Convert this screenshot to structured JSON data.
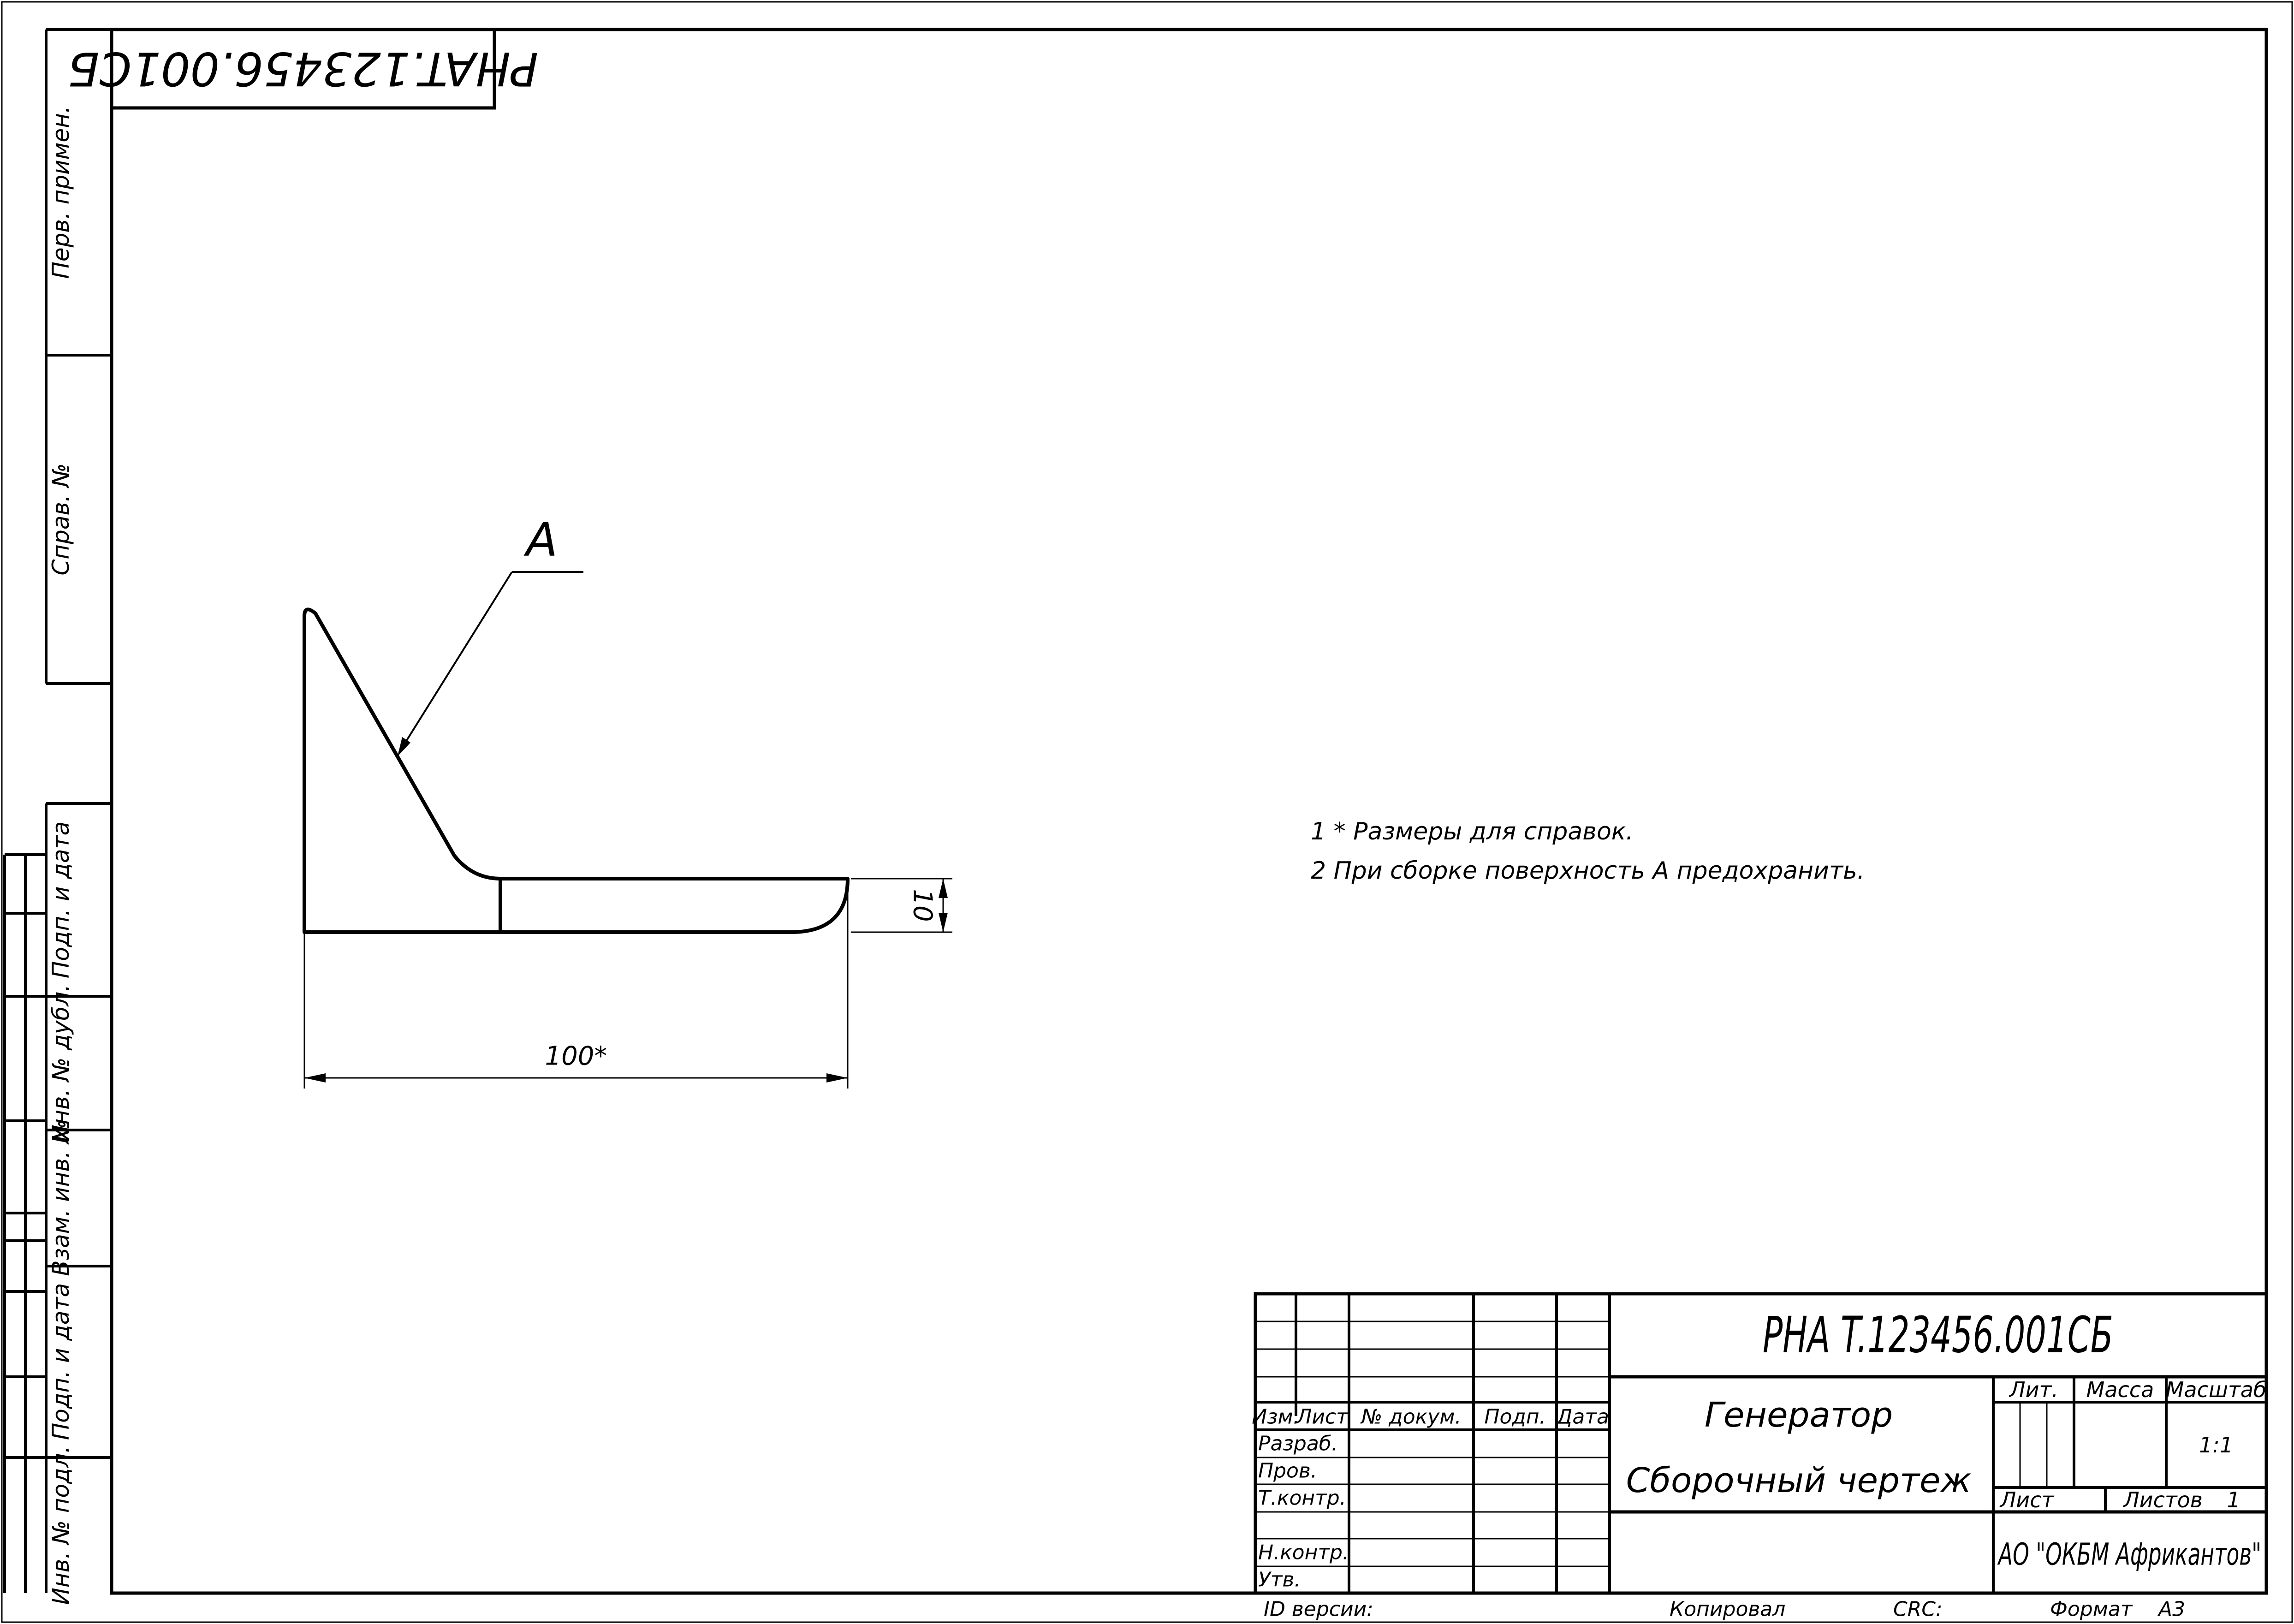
{
  "document": {
    "code": "PHA T.123456.001СБ",
    "code_stamp": "PHAT.123456.001СБ",
    "title_line1": "Генератор",
    "title_line2": "Сборочный чертеж",
    "organization": "АО \"ОКБМ Африкантов\""
  },
  "title_block": {
    "col_headers": [
      "Изм.",
      "Лист",
      "№ докум.",
      "Подп.",
      "Дата"
    ],
    "role_rows": [
      "Разраб.",
      "Пров.",
      "Т.контр.",
      "Н.контр.",
      "Утв."
    ],
    "lit_label": "Лит.",
    "mass_label": "Масса",
    "scale_label": "Масштаб",
    "scale_value": "1:1",
    "sheet_label": "Лист",
    "sheets_label": "Листов",
    "sheets_value": "1"
  },
  "bottom_strip": {
    "version_label": "ID версии:",
    "copied_label": "Копировал",
    "crc_label": "CRC:",
    "format_label": "Формат",
    "format_value": "А3"
  },
  "side_strip": {
    "first_use": "Перв. примен.",
    "reference_no": "Справ. №",
    "sign_date_upper": "Подп. и дата",
    "dup_inv_no": "Инв. № дубл.",
    "replace_inv_no": "Взам. инв. №",
    "sign_date_lower": "Подп. и дата",
    "original_inv_no": "Инв. № подл."
  },
  "drawing": {
    "surface_label": "А",
    "dim_length": "100*",
    "dim_thickness": "10"
  },
  "notes": [
    "1  * Размеры для справок.",
    "2  При сборке поверхность А предохранить."
  ]
}
